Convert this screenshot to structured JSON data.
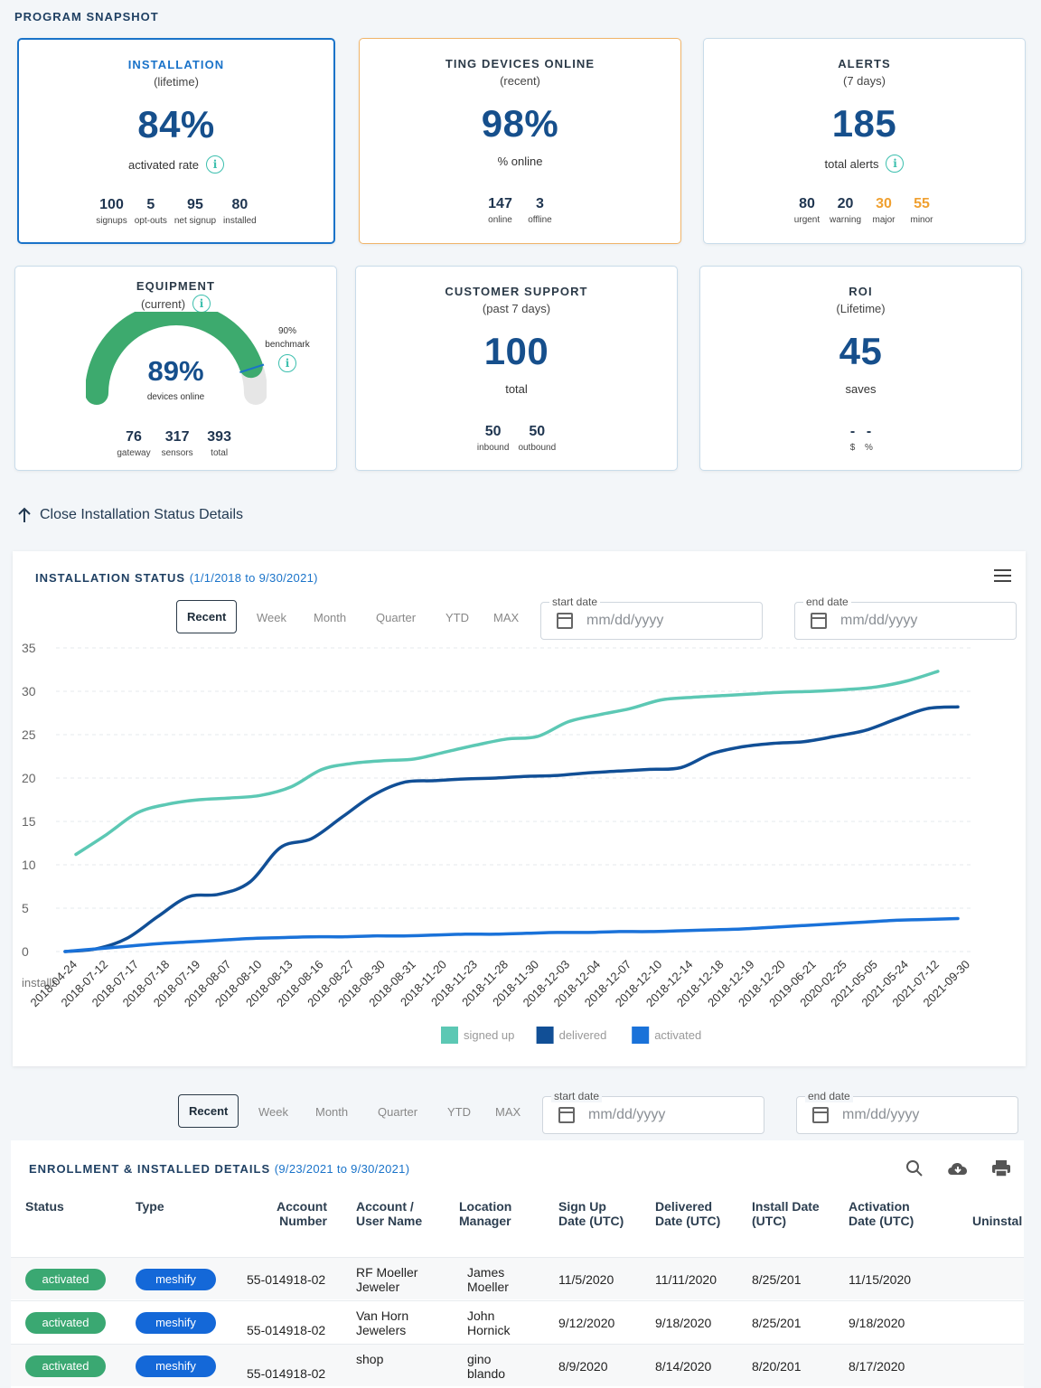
{
  "section_title": "PROGRAM SNAPSHOT",
  "cards": {
    "installation": {
      "title": "INSTALLATION",
      "sub": "(lifetime)",
      "value": "84%",
      "label": "activated rate",
      "stats": [
        {
          "n": "100",
          "l": "signups"
        },
        {
          "n": "5",
          "l": "opt-outs"
        },
        {
          "n": "95",
          "l": "net signup"
        },
        {
          "n": "80",
          "l": "installed"
        }
      ]
    },
    "online": {
      "title": "TING DEVICES ONLINE",
      "sub": "(recent)",
      "value": "98%",
      "label": "% online",
      "stats": [
        {
          "n": "147",
          "l": "online"
        },
        {
          "n": "3",
          "l": "offline"
        }
      ]
    },
    "alerts": {
      "title": "ALERTS",
      "sub": "(7 days)",
      "value": "185",
      "label": "total alerts",
      "stats": [
        {
          "n": "80",
          "l": "urgent"
        },
        {
          "n": "20",
          "l": "warning"
        },
        {
          "n": "30",
          "l": "major"
        },
        {
          "n": "55",
          "l": "minor"
        }
      ]
    },
    "equipment": {
      "title": "EQUIPMENT",
      "sub": "(current)",
      "value": "89%",
      "label": "devices online",
      "benchmark_value": "90%",
      "benchmark_label": "benchmark",
      "gauge_fraction": 0.89,
      "benchmark_fraction": 0.9,
      "stats": [
        {
          "n": "76",
          "l": "gateway"
        },
        {
          "n": "317",
          "l": "sensors"
        },
        {
          "n": "393",
          "l": "total"
        }
      ]
    },
    "support": {
      "title": "CUSTOMER SUPPORT",
      "sub": "(past 7 days)",
      "value": "100",
      "label": "total",
      "stats": [
        {
          "n": "50",
          "l": "inbound"
        },
        {
          "n": "50",
          "l": "outbound"
        }
      ]
    },
    "roi": {
      "title": "ROI",
      "sub": "(Lifetime)",
      "value": "45",
      "label": "saves",
      "stats": [
        {
          "n": "-",
          "l": "$"
        },
        {
          "n": "-",
          "l": "%"
        }
      ]
    }
  },
  "close_link": "Close Installation Status Details",
  "range_buttons": [
    "Recent",
    "Week",
    "Month",
    "Quarter",
    "YTD",
    "MAX"
  ],
  "date_fields": {
    "start_label": "start date",
    "end_label": "end date",
    "placeholder": "mm/dd/yyyy"
  },
  "chart_panel": {
    "title": "INSTALLATION STATUS",
    "range": "(1/1/2018 to 9/30/2021)"
  },
  "chart_data": {
    "type": "line",
    "title": "INSTALLATION STATUS",
    "ylabel": "installs",
    "ylim": [
      0,
      35
    ],
    "yticks": [
      0,
      5,
      10,
      15,
      20,
      25,
      30,
      35
    ],
    "categories": [
      "2018-04-24",
      "2018-07-12",
      "2018-07-17",
      "2018-07-18",
      "2018-07-19",
      "2018-08-07",
      "2018-08-10",
      "2018-08-13",
      "2018-08-16",
      "2018-08-27",
      "2018-08-30",
      "2018-08-31",
      "2018-11-20",
      "2018-11-23",
      "2018-11-28",
      "2018-11-30",
      "2018-12-03",
      "2018-12-04",
      "2018-12-07",
      "2018-12-10",
      "2018-12-14",
      "2018-12-18",
      "2018-12-19",
      "2018-12-20",
      "2019-06-21",
      "2020-02-25",
      "2021-05-05",
      "2021-05-24",
      "2021-07-12",
      "2021-09-30"
    ],
    "series": [
      {
        "name": "signed up",
        "color": "#5cc8b4",
        "values": [
          11.2,
          13.5,
          16,
          17,
          17.5,
          17.7,
          18,
          19,
          21,
          21.7,
          22,
          22.2,
          23,
          23.8,
          24.5,
          24.8,
          26.5,
          27.3,
          28,
          29,
          29.3,
          29.5,
          29.7,
          29.9,
          30,
          30.2,
          30.5,
          31.2,
          32.3,
          null
        ]
      },
      {
        "name": "delivered",
        "color": "#114f96",
        "values": [
          0,
          0.3,
          1.5,
          4,
          6.3,
          6.6,
          8,
          12,
          13,
          15.5,
          18,
          19.5,
          19.7,
          19.9,
          20,
          20.2,
          20.3,
          20.6,
          20.8,
          21,
          21.2,
          22.8,
          23.6,
          24,
          24.2,
          24.8,
          25.5,
          26.8,
          28,
          28.2
        ]
      },
      {
        "name": "activated",
        "color": "#1a72d9",
        "values": [
          0,
          0.3,
          0.6,
          0.9,
          1.1,
          1.3,
          1.5,
          1.6,
          1.7,
          1.7,
          1.8,
          1.8,
          1.9,
          2,
          2,
          2.1,
          2.2,
          2.2,
          2.3,
          2.3,
          2.4,
          2.5,
          2.6,
          2.8,
          3,
          3.2,
          3.4,
          3.6,
          3.7,
          3.8
        ]
      }
    ],
    "legend": [
      "signed up",
      "delivered",
      "activated"
    ]
  },
  "table": {
    "title": "ENROLLMENT & INSTALLED DETAILS",
    "range": "(9/23/2021 to 9/30/2021)",
    "headers": {
      "status": "Status",
      "type": "Type",
      "account_number": "Account Number",
      "account_user": "Account / User Name",
      "location_manager": "Location Manager",
      "sign_up": "Sign Up Date (UTC)",
      "delivered": "Delivered Date (UTC)",
      "install": "Install Date (UTC)",
      "activation": "Activation Date (UTC)",
      "uninstall": "Uninstal"
    },
    "rows": [
      {
        "status": "activated",
        "type": "meshify",
        "account": "55-014918-02",
        "user": "RF Moeller Jeweler",
        "manager": "James Moeller",
        "signup": "11/5/2020",
        "delivered": "11/11/2020",
        "install": "8/25/201",
        "activation": "11/15/2020"
      },
      {
        "status": "activated",
        "type": "meshify",
        "account": "55-014918-02",
        "user": "Van Horn Jewelers",
        "manager": "John Hornick",
        "signup": "9/12/2020",
        "delivered": "9/18/2020",
        "install": "8/25/201",
        "activation": "9/18/2020"
      },
      {
        "status": "activated",
        "type": "meshify",
        "account": "55-014918-02",
        "user": "shop",
        "manager": "gino blando",
        "signup": "8/9/2020",
        "delivered": "8/14/2020",
        "install": "8/20/201",
        "activation": "8/17/2020"
      }
    ]
  }
}
